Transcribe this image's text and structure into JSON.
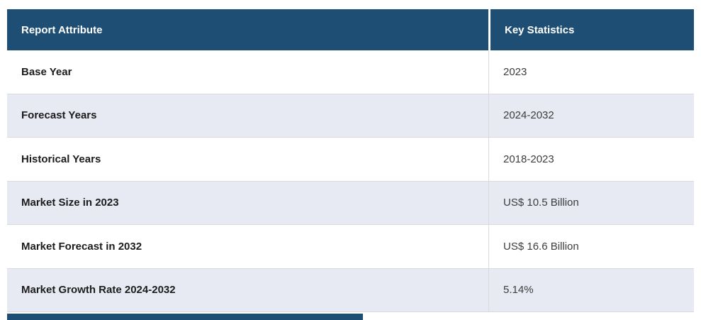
{
  "table": {
    "header": {
      "attribute_col": "Report Attribute",
      "value_col": "Key Statistics"
    },
    "rows": [
      {
        "attribute": "Base Year",
        "value": "2023"
      },
      {
        "attribute": "Forecast Years",
        "value": "2024-2032"
      },
      {
        "attribute": "Historical Years",
        "value": "2018-2023"
      },
      {
        "attribute": "Market Size in 2023",
        "value": "US$ 10.5 Billion"
      },
      {
        "attribute": "Market Forecast in 2032",
        "value": "US$ 16.6 Billion"
      },
      {
        "attribute": "Market Growth Rate 2024-2032",
        "value": "5.14%"
      }
    ]
  },
  "next_table_partial": {
    "visible": true,
    "note": "top sliver of next table header cut off at bottom edge"
  },
  "colors": {
    "header_bg": "#1F4E74",
    "header_text": "#FFFFFF",
    "row_bg": "#FFFFFF",
    "row_alt_bg": "#E7E9F3",
    "attribute_text": "#1C1C1C",
    "value_text": "#3D3D3D",
    "border": "#D9D9DE"
  },
  "chart_data": {
    "type": "table",
    "columns": [
      "Report Attribute",
      "Key Statistics"
    ],
    "rows": [
      [
        "Base Year",
        "2023"
      ],
      [
        "Forecast Years",
        "2024-2032"
      ],
      [
        "Historical Years",
        "2018-2023"
      ],
      [
        "Market Size in 2023",
        "US$ 10.5 Billion"
      ],
      [
        "Market Forecast in 2032",
        "US$ 16.6 Billion"
      ],
      [
        "Market Growth Rate 2024-2032",
        "5.14%"
      ]
    ]
  }
}
